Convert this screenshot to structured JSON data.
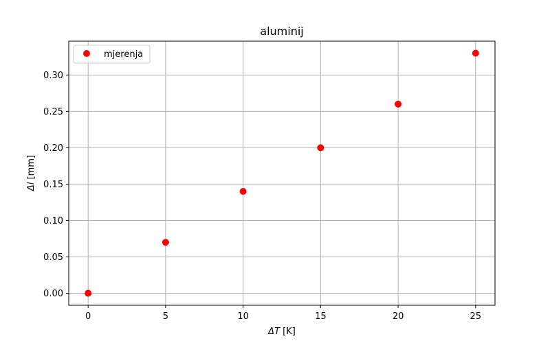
{
  "chart_data": {
    "type": "scatter",
    "title": "aluminij",
    "xlabel": {
      "symbol": "ΔT",
      "unit": "[K]"
    },
    "ylabel": {
      "symbol": "Δl",
      "unit": "[mm]"
    },
    "xlim": [
      -1.25,
      26.25
    ],
    "ylim": [
      -0.0165,
      0.3465
    ],
    "xticks": [
      0,
      5,
      10,
      15,
      20,
      25
    ],
    "yticks": [
      0.0,
      0.05,
      0.1,
      0.15,
      0.2,
      0.25,
      0.3
    ],
    "ytick_decimals": 2,
    "grid": true,
    "legend_position": "upper-left",
    "series": [
      {
        "name": "mjerenja",
        "color": "#ff0000",
        "marker": "circle",
        "x": [
          0,
          5,
          10,
          15,
          20,
          25
        ],
        "y": [
          0.0,
          0.07,
          0.14,
          0.2,
          0.26,
          0.33
        ]
      }
    ]
  }
}
